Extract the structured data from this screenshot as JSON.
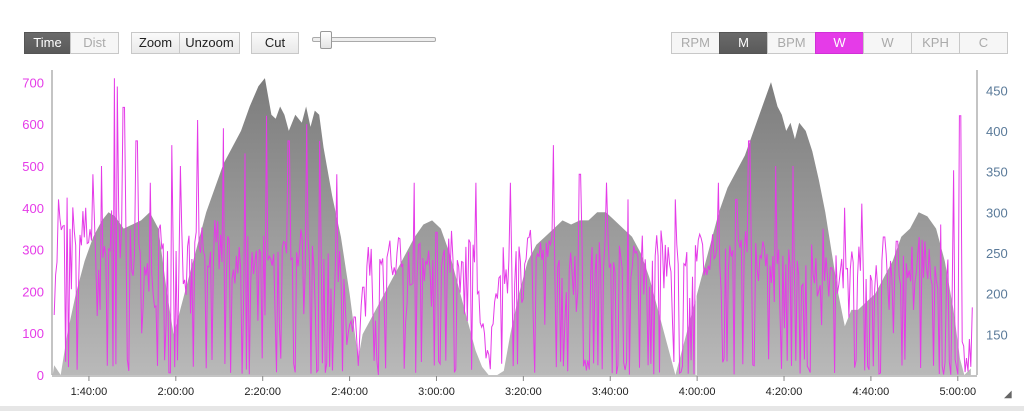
{
  "toolbar": {
    "time_label": "Time",
    "dist_label": "Dist",
    "zoom_label": "Zoom",
    "unzoom_label": "Unzoom",
    "cut_label": "Cut",
    "series_buttons": [
      "RPM",
      "M",
      "BPM",
      "W",
      "W",
      "KPH",
      "C"
    ]
  },
  "colors": {
    "power": "#e53be8",
    "altitude": "#7a7a7a",
    "right_axis": "#5a7a99"
  },
  "chart_data": {
    "type": "area",
    "xlabel": "",
    "ylabel": "",
    "x_ticks": [
      "1:40:00",
      "2:00:00",
      "2:20:00",
      "2:40:00",
      "3:00:00",
      "3:20:00",
      "3:40:00",
      "4:00:00",
      "4:20:00",
      "4:40:00",
      "5:00:00"
    ],
    "x_range": [
      "1:31:30",
      "5:03:30"
    ],
    "y_left_ticks": [
      0,
      100,
      200,
      300,
      400,
      500,
      600,
      700
    ],
    "y_left_range": [
      0,
      720
    ],
    "y_right_ticks": [
      150,
      200,
      250,
      300,
      350,
      400,
      450
    ],
    "y_right_range": [
      100,
      470
    ],
    "grid": false,
    "series": [
      {
        "axis": "right",
        "style": "area",
        "points": [
          [
            "1:31:40",
            100
          ],
          [
            "1:32:00",
            112
          ],
          [
            "1:33:30",
            100
          ],
          [
            "1:35:00",
            150
          ],
          [
            "1:37:00",
            200
          ],
          [
            "1:39:00",
            240
          ],
          [
            "1:41:00",
            270
          ],
          [
            "1:43:00",
            290
          ],
          [
            "1:44:30",
            300
          ],
          [
            "1:46:00",
            295
          ],
          [
            "1:48:00",
            280
          ],
          [
            "1:50:00",
            285
          ],
          [
            "1:52:00",
            290
          ],
          [
            "1:54:00",
            300
          ],
          [
            "1:56:00",
            280
          ],
          [
            "1:58:00",
            200
          ],
          [
            "1:59:30",
            150
          ],
          [
            "2:01:00",
            180
          ],
          [
            "2:03:00",
            220
          ],
          [
            "2:05:00",
            260
          ],
          [
            "2:07:00",
            300
          ],
          [
            "2:09:00",
            330
          ],
          [
            "2:11:00",
            360
          ],
          [
            "2:13:00",
            380
          ],
          [
            "2:15:00",
            400
          ],
          [
            "2:17:00",
            430
          ],
          [
            "2:19:00",
            455
          ],
          [
            "2:20:30",
            465
          ],
          [
            "2:22:00",
            420
          ],
          [
            "2:23:00",
            415
          ],
          [
            "2:24:00",
            430
          ],
          [
            "2:25:00",
            420
          ],
          [
            "2:26:00",
            400
          ],
          [
            "2:27:30",
            420
          ],
          [
            "2:29:00",
            410
          ],
          [
            "2:30:00",
            430
          ],
          [
            "2:31:00",
            405
          ],
          [
            "2:32:00",
            425
          ],
          [
            "2:33:00",
            420
          ],
          [
            "2:34:00",
            380
          ],
          [
            "2:36:00",
            320
          ],
          [
            "2:38:00",
            270
          ],
          [
            "2:40:00",
            200
          ],
          [
            "2:41:00",
            160
          ],
          [
            "2:42:00",
            120
          ],
          [
            "2:43:00",
            150
          ],
          [
            "2:45:00",
            170
          ],
          [
            "2:47:00",
            190
          ],
          [
            "2:49:00",
            210
          ],
          [
            "2:51:00",
            230
          ],
          [
            "2:53:00",
            250
          ],
          [
            "2:55:00",
            270
          ],
          [
            "2:57:00",
            285
          ],
          [
            "2:59:00",
            290
          ],
          [
            "3:01:00",
            280
          ],
          [
            "3:03:00",
            250
          ],
          [
            "3:05:00",
            210
          ],
          [
            "3:07:00",
            170
          ],
          [
            "3:09:00",
            130
          ],
          [
            "3:10:30",
            110
          ],
          [
            "3:12:00",
            100
          ],
          [
            "3:14:00",
            100
          ],
          [
            "3:15:30",
            105
          ],
          [
            "3:17:00",
            150
          ],
          [
            "3:19:00",
            200
          ],
          [
            "3:21:00",
            240
          ],
          [
            "3:23:00",
            260
          ],
          [
            "3:25:00",
            270
          ],
          [
            "3:27:00",
            280
          ],
          [
            "3:29:00",
            290
          ],
          [
            "3:31:00",
            285
          ],
          [
            "3:33:00",
            290
          ],
          [
            "3:35:00",
            290
          ],
          [
            "3:37:00",
            300
          ],
          [
            "3:39:00",
            300
          ],
          [
            "3:41:00",
            290
          ],
          [
            "3:43:00",
            280
          ],
          [
            "3:45:00",
            270
          ],
          [
            "3:47:00",
            250
          ],
          [
            "3:49:00",
            220
          ],
          [
            "3:51:00",
            180
          ],
          [
            "3:53:00",
            140
          ],
          [
            "3:55:00",
            100
          ],
          [
            "3:57:00",
            140
          ],
          [
            "3:59:00",
            180
          ],
          [
            "4:01:00",
            220
          ],
          [
            "4:03:00",
            260
          ],
          [
            "4:05:00",
            300
          ],
          [
            "4:07:00",
            330
          ],
          [
            "4:09:00",
            350
          ],
          [
            "4:11:00",
            370
          ],
          [
            "4:13:00",
            400
          ],
          [
            "4:15:00",
            430
          ],
          [
            "4:17:00",
            460
          ],
          [
            "4:18:30",
            430
          ],
          [
            "4:19:30",
            420
          ],
          [
            "4:20:30",
            400
          ],
          [
            "4:21:30",
            410
          ],
          [
            "4:22:30",
            390
          ],
          [
            "4:23:30",
            410
          ],
          [
            "4:25:00",
            400
          ],
          [
            "4:26:30",
            375
          ],
          [
            "4:28:00",
            340
          ],
          [
            "4:29:30",
            300
          ],
          [
            "4:31:00",
            250
          ],
          [
            "4:32:30",
            200
          ],
          [
            "4:34:00",
            160
          ],
          [
            "4:35:30",
            180
          ],
          [
            "4:37:00",
            180
          ],
          [
            "4:39:00",
            190
          ],
          [
            "4:41:00",
            200
          ],
          [
            "4:43:00",
            220
          ],
          [
            "4:45:00",
            240
          ],
          [
            "4:47:00",
            270
          ],
          [
            "4:49:00",
            280
          ],
          [
            "4:51:00",
            300
          ],
          [
            "4:53:00",
            295
          ],
          [
            "4:55:00",
            280
          ],
          [
            "4:57:00",
            240
          ],
          [
            "4:59:00",
            180
          ],
          [
            "5:00:30",
            120
          ],
          [
            "5:01:30",
            100
          ],
          [
            "5:03:00",
            108
          ]
        ]
      },
      {
        "axis": "left",
        "style": "line",
        "name": "W",
        "samples": 640,
        "envelope": [
          [
            "1:32:00",
            150
          ],
          [
            "1:33:00",
            300
          ],
          [
            "1:34:00",
            390
          ],
          [
            "1:36:00",
            350
          ],
          [
            "1:38:00",
            330
          ],
          [
            "1:40:00",
            360
          ],
          [
            "1:42:00",
            300
          ],
          [
            "1:44:00",
            260
          ],
          [
            "1:46:00",
            380
          ],
          [
            "1:48:00",
            330
          ],
          [
            "1:50:00",
            300
          ],
          [
            "1:52:00",
            250
          ],
          [
            "1:54:00",
            220
          ],
          [
            "1:56:00",
            320
          ],
          [
            "1:58:00",
            300
          ],
          [
            "2:00:00",
            310
          ],
          [
            "2:02:00",
            280
          ],
          [
            "2:04:00",
            330
          ],
          [
            "2:06:00",
            300
          ],
          [
            "2:08:00",
            300
          ],
          [
            "2:10:00",
            320
          ],
          [
            "2:12:00",
            280
          ],
          [
            "2:14:00",
            260
          ],
          [
            "2:16:00",
            290
          ],
          [
            "2:18:00",
            270
          ],
          [
            "2:20:00",
            300
          ],
          [
            "2:22:00",
            250
          ],
          [
            "2:24:00",
            300
          ],
          [
            "2:26:00",
            260
          ],
          [
            "2:28:00",
            300
          ],
          [
            "2:30:00",
            280
          ],
          [
            "2:32:00",
            300
          ],
          [
            "2:34:00",
            280
          ],
          [
            "2:36:00",
            260
          ],
          [
            "2:38:00",
            250
          ],
          [
            "2:40:00",
            120
          ],
          [
            "2:42:00",
            120
          ],
          [
            "2:44:00",
            250
          ],
          [
            "2:46:00",
            300
          ],
          [
            "2:48:00",
            280
          ],
          [
            "2:50:00",
            270
          ],
          [
            "2:52:00",
            300
          ],
          [
            "2:54:00",
            250
          ],
          [
            "2:56:00",
            270
          ],
          [
            "2:58:00",
            290
          ],
          [
            "3:00:00",
            300
          ],
          [
            "3:02:00",
            280
          ],
          [
            "3:04:00",
            290
          ],
          [
            "3:06:00",
            270
          ],
          [
            "3:08:00",
            290
          ],
          [
            "3:10:00",
            150
          ],
          [
            "3:12:00",
            40
          ],
          [
            "3:14:00",
            200
          ],
          [
            "3:16:00",
            290
          ],
          [
            "3:18:00",
            250
          ],
          [
            "3:20:00",
            300
          ],
          [
            "3:22:00",
            290
          ],
          [
            "3:24:00",
            300
          ],
          [
            "3:26:00",
            280
          ],
          [
            "3:28:00",
            300
          ],
          [
            "3:30:00",
            260
          ],
          [
            "3:32:00",
            280
          ],
          [
            "3:34:00",
            300
          ],
          [
            "3:36:00",
            270
          ],
          [
            "3:38:00",
            280
          ],
          [
            "3:40:00",
            300
          ],
          [
            "3:42:00",
            280
          ],
          [
            "3:44:00",
            260
          ],
          [
            "3:46:00",
            300
          ],
          [
            "3:48:00",
            280
          ],
          [
            "3:50:00",
            300
          ],
          [
            "3:52:00",
            290
          ],
          [
            "3:54:00",
            260
          ],
          [
            "3:56:00",
            270
          ],
          [
            "3:58:00",
            280
          ],
          [
            "4:00:00",
            290
          ],
          [
            "4:02:00",
            270
          ],
          [
            "4:04:00",
            290
          ],
          [
            "4:06:00",
            280
          ],
          [
            "4:08:00",
            290
          ],
          [
            "4:10:00",
            300
          ],
          [
            "4:12:00",
            290
          ],
          [
            "4:14:00",
            270
          ],
          [
            "4:16:00",
            300
          ],
          [
            "4:18:00",
            260
          ],
          [
            "4:20:00",
            280
          ],
          [
            "4:22:00",
            250
          ],
          [
            "4:24:00",
            260
          ],
          [
            "4:26:00",
            270
          ],
          [
            "4:28:00",
            230
          ],
          [
            "4:30:00",
            240
          ],
          [
            "4:32:00",
            260
          ],
          [
            "4:34:00",
            230
          ],
          [
            "4:36:00",
            270
          ],
          [
            "4:38:00",
            260
          ],
          [
            "4:40:00",
            230
          ],
          [
            "4:42:00",
            240
          ],
          [
            "4:44:00",
            260
          ],
          [
            "4:46:00",
            220
          ],
          [
            "4:48:00",
            280
          ],
          [
            "4:50:00",
            250
          ],
          [
            "4:52:00",
            300
          ],
          [
            "4:54:00",
            240
          ],
          [
            "4:56:00",
            220
          ],
          [
            "4:58:00",
            250
          ],
          [
            "5:00:00",
            200
          ],
          [
            "5:01:00",
            80
          ],
          [
            "5:02:00",
            40
          ],
          [
            "5:03:00",
            180
          ]
        ],
        "peaks": [
          [
            "1:33:00",
            420
          ],
          [
            "1:41:00",
            480
          ],
          [
            "1:43:00",
            500
          ],
          [
            "1:46:00",
            710
          ],
          [
            "1:46:30",
            690
          ],
          [
            "1:48:00",
            640
          ],
          [
            "1:51:00",
            560
          ],
          [
            "1:54:00",
            460
          ],
          [
            "1:59:00",
            550
          ],
          [
            "2:01:00",
            500
          ],
          [
            "2:05:00",
            610
          ],
          [
            "2:11:00",
            590
          ],
          [
            "2:16:00",
            530
          ],
          [
            "2:21:00",
            620
          ],
          [
            "2:26:00",
            560
          ],
          [
            "2:30:00",
            600
          ],
          [
            "2:33:00",
            560
          ],
          [
            "2:37:00",
            480
          ],
          [
            "2:55:00",
            460
          ],
          [
            "3:09:00",
            460
          ],
          [
            "3:17:00",
            460
          ],
          [
            "3:27:00",
            550
          ],
          [
            "3:33:00",
            480
          ],
          [
            "3:39:00",
            460
          ],
          [
            "3:44:00",
            420
          ],
          [
            "3:55:00",
            420
          ],
          [
            "4:05:00",
            460
          ],
          [
            "4:09:00",
            420
          ],
          [
            "4:12:00",
            560
          ],
          [
            "4:18:00",
            500
          ],
          [
            "4:22:00",
            500
          ],
          [
            "4:29:00",
            350
          ],
          [
            "4:34:00",
            400
          ],
          [
            "4:38:00",
            410
          ],
          [
            "4:43:00",
            330
          ],
          [
            "4:46:00",
            320
          ],
          [
            "4:51:00",
            330
          ],
          [
            "4:56:00",
            360
          ],
          [
            "4:59:00",
            490
          ],
          [
            "5:00:30",
            620
          ]
        ]
      }
    ]
  }
}
